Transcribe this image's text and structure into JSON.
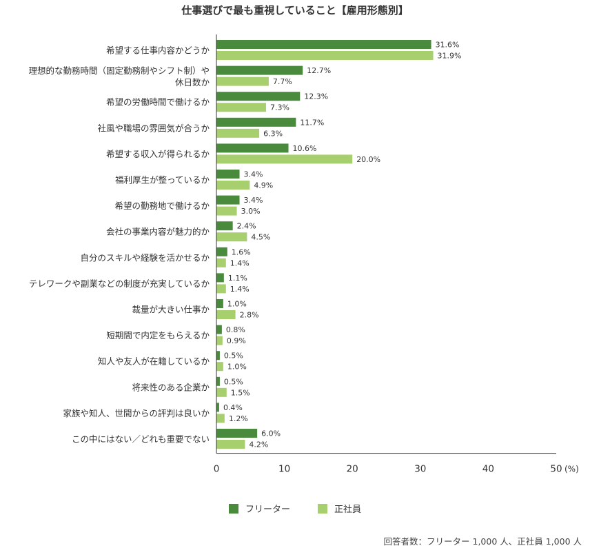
{
  "chart_data": {
    "type": "bar",
    "orientation": "horizontal",
    "title": "仕事選びで最も重視していること【雇用形態別】",
    "categories": [
      "希望する仕事内容かどうか",
      "理想的な勤務時間（固定勤務制やシフト制）や休日数か",
      "希望の労働時間で働けるか",
      "社風や職場の雰囲気が合うか",
      "希望する収入が得られるか",
      "福利厚生が整っているか",
      "希望の勤務地で働けるか",
      "会社の事業内容が魅力的か",
      "自分のスキルや経験を活かせるか",
      "テレワークや副業などの制度が充実しているか",
      "裁量が大きい仕事か",
      "短期間で内定をもらえるか",
      "知人や友人が在籍しているか",
      "将来性のある企業か",
      "家族や知人、世間からの評判は良いか",
      "この中にはない／どれも重要でない"
    ],
    "category_lines": [
      [
        "希望する仕事内容かどうか"
      ],
      [
        "理想的な勤務時間（固定勤務制やシフト制）や",
        "休日数か"
      ],
      [
        "希望の労働時間で働けるか"
      ],
      [
        "社風や職場の雰囲気が合うか"
      ],
      [
        "希望する収入が得られるか"
      ],
      [
        "福利厚生が整っているか"
      ],
      [
        "希望の勤務地で働けるか"
      ],
      [
        "会社の事業内容が魅力的か"
      ],
      [
        "自分のスキルや経験を活かせるか"
      ],
      [
        "テレワークや副業などの制度が充実しているか"
      ],
      [
        "裁量が大きい仕事か"
      ],
      [
        "短期間で内定をもらえるか"
      ],
      [
        "知人や友人が在籍しているか"
      ],
      [
        "将来性のある企業か"
      ],
      [
        "家族や知人、世間からの評判は良いか"
      ],
      [
        "この中にはない／どれも重要でない"
      ]
    ],
    "series": [
      {
        "name": "フリーター",
        "color": "#4a8a3d",
        "values": [
          31.6,
          12.7,
          12.3,
          11.7,
          10.6,
          3.4,
          3.4,
          2.4,
          1.6,
          1.1,
          1.0,
          0.8,
          0.5,
          0.5,
          0.4,
          6.0
        ],
        "labels": [
          "31.6%",
          "12.7%",
          "12.3%",
          "11.7%",
          "10.6%",
          "3.4%",
          "3.4%",
          "2.4%",
          "1.6%",
          "1.1%",
          "1.0%",
          "0.8%",
          "0.5%",
          "0.5%",
          "0.4%",
          "6.0%"
        ]
      },
      {
        "name": "正社員",
        "color": "#a8cf6e",
        "values": [
          31.9,
          7.7,
          7.3,
          6.3,
          20.0,
          4.9,
          3.0,
          4.5,
          1.4,
          1.4,
          2.8,
          0.9,
          1.0,
          1.5,
          1.2,
          4.2
        ],
        "labels": [
          "31.9%",
          "7.7%",
          "7.3%",
          "6.3%",
          "20.0%",
          "4.9%",
          "3.0%",
          "4.5%",
          "1.4%",
          "1.4%",
          "2.8%",
          "0.9%",
          "1.0%",
          "1.5%",
          "1.2%",
          "4.2%"
        ]
      }
    ],
    "xlim": [
      0,
      50
    ],
    "xticks": [
      "0",
      "10",
      "20",
      "30",
      "40",
      "50"
    ],
    "xunit": "(%)",
    "grid": false,
    "legend_position": "bottom-center"
  },
  "footnote": "回答者数：フリーター 1,000 人、正社員 1,000 人"
}
